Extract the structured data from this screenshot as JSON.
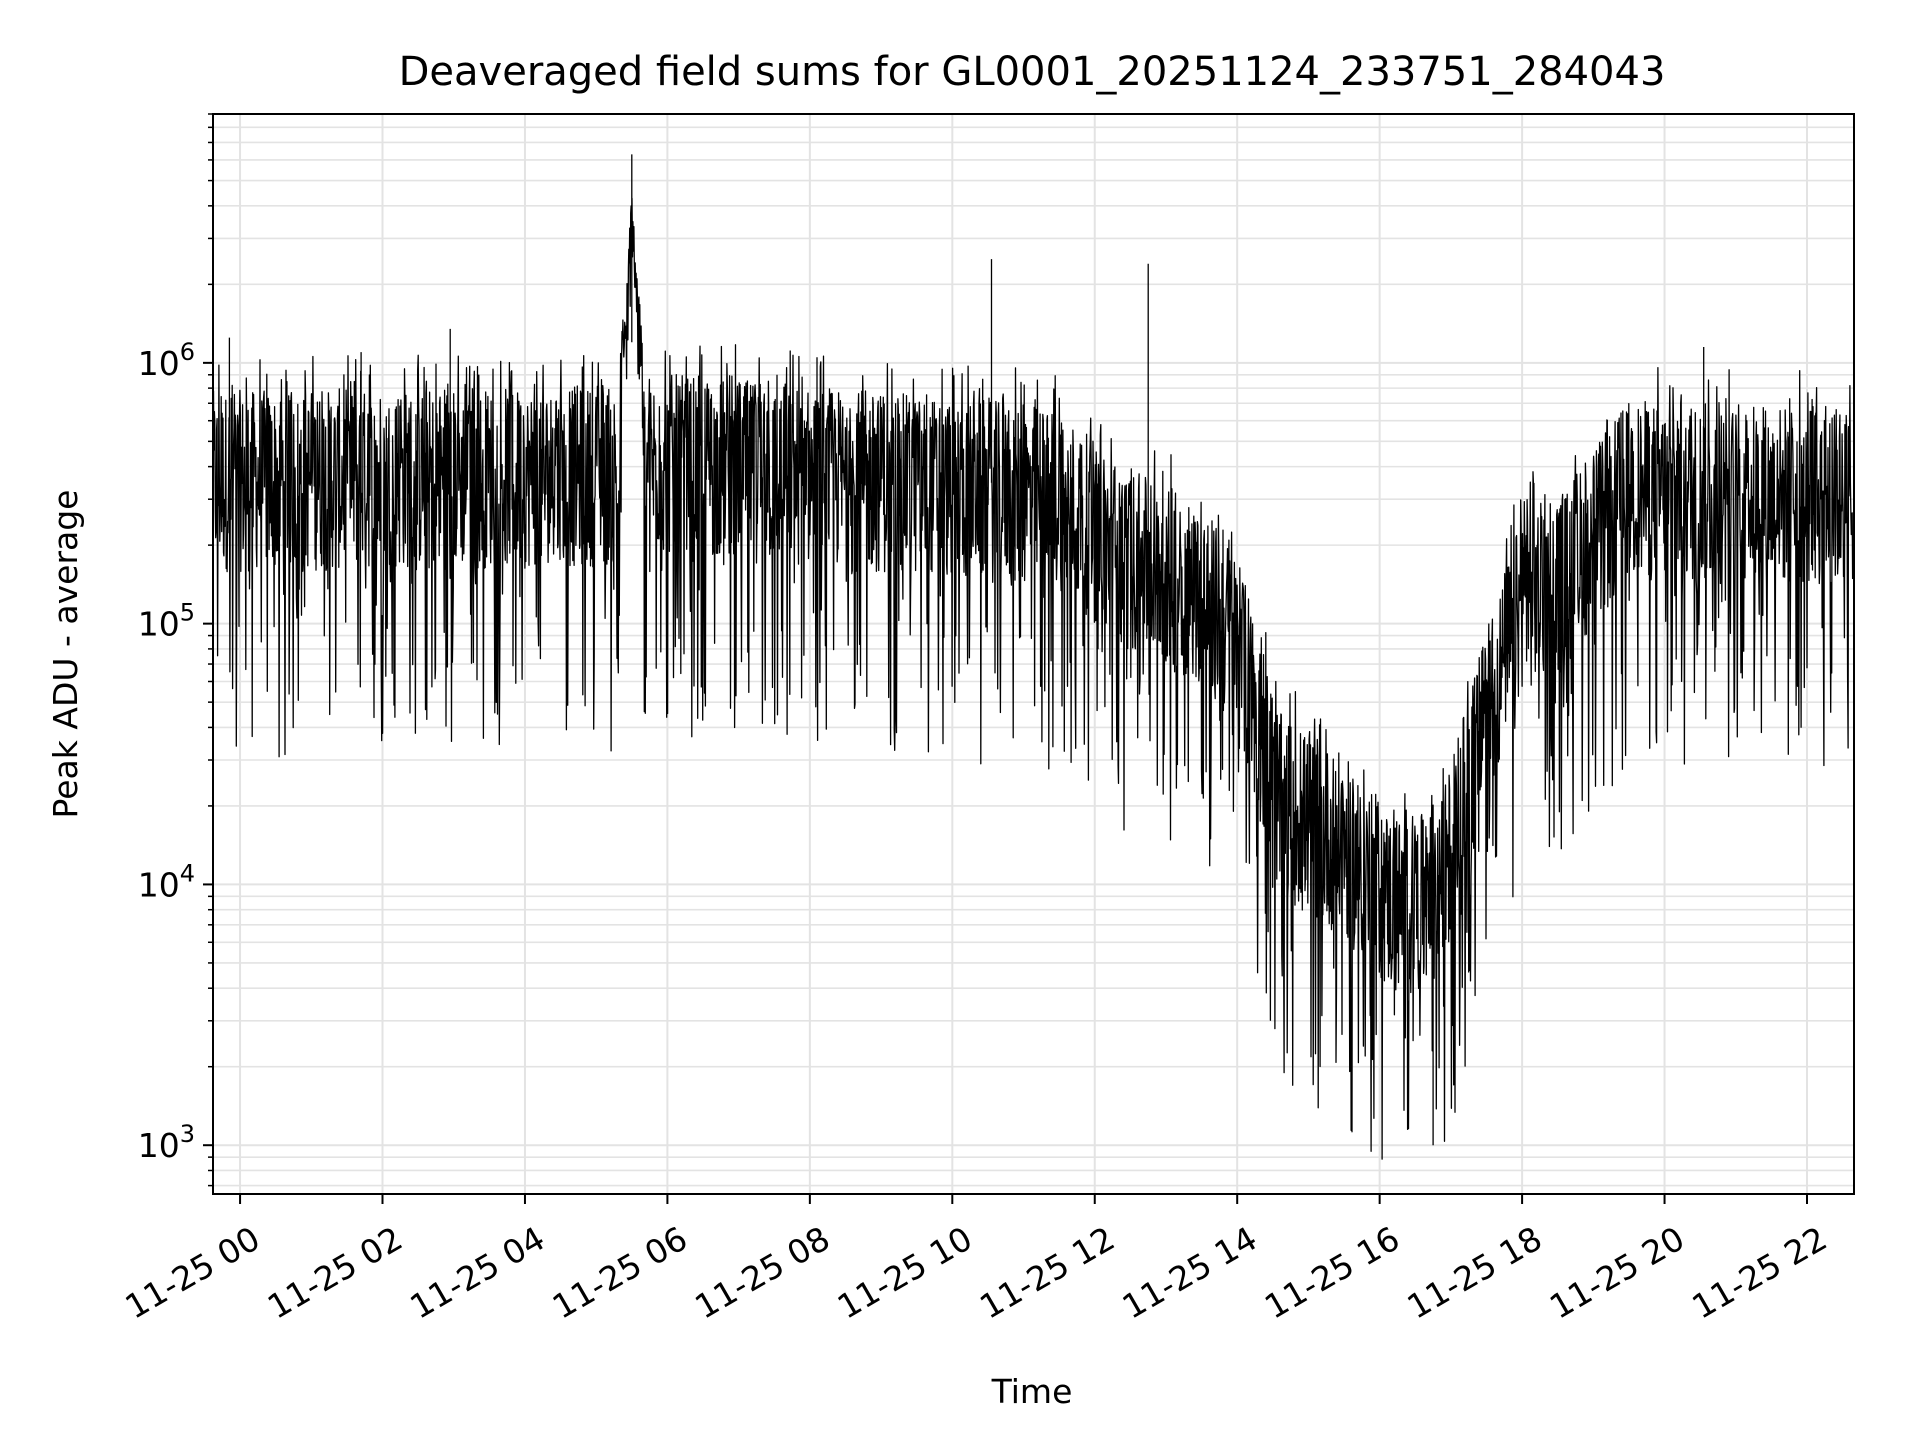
{
  "chart_data": {
    "type": "line",
    "title": "Deaveraged field sums for GL0001_20251124_233751_284043",
    "xlabel": "Time",
    "ylabel": "Peak ADU - average",
    "yscale": "log",
    "ylim": [
      650,
      9000000
    ],
    "xlim_hours": [
      -0.38,
      22.66
    ],
    "grid": true,
    "x_ticks": [
      {
        "hour": 0,
        "label": "11-25 00"
      },
      {
        "hour": 2,
        "label": "11-25 02"
      },
      {
        "hour": 4,
        "label": "11-25 04"
      },
      {
        "hour": 6,
        "label": "11-25 06"
      },
      {
        "hour": 8,
        "label": "11-25 08"
      },
      {
        "hour": 10,
        "label": "11-25 10"
      },
      {
        "hour": 12,
        "label": "11-25 12"
      },
      {
        "hour": 14,
        "label": "11-25 14"
      },
      {
        "hour": 16,
        "label": "11-25 16"
      },
      {
        "hour": 18,
        "label": "11-25 18"
      },
      {
        "hour": 20,
        "label": "11-25 20"
      },
      {
        "hour": 22,
        "label": "11-25 22"
      }
    ],
    "y_ticks": [
      {
        "value": 1000,
        "base": "10",
        "exp": "3"
      },
      {
        "value": 10000,
        "base": "10",
        "exp": "4"
      },
      {
        "value": 100000,
        "base": "10",
        "exp": "5"
      },
      {
        "value": 1000000,
        "base": "10",
        "exp": "6"
      }
    ],
    "series": [
      {
        "name": "deaveraged field sum",
        "color": "#000000",
        "baseline": [
          [
            -0.38,
            380000
          ],
          [
            5.4,
            400000
          ],
          [
            5.5,
            1200000
          ],
          [
            5.6,
            450000
          ],
          [
            11.5,
            330000
          ],
          [
            12.3,
            200000
          ],
          [
            13.5,
            140000
          ],
          [
            14.0,
            90000
          ],
          [
            14.6,
            22000
          ],
          [
            15.5,
            15000
          ],
          [
            16.2,
            9000
          ],
          [
            16.8,
            9000
          ],
          [
            17.3,
            30000
          ],
          [
            18.0,
            130000
          ],
          [
            18.6,
            160000
          ],
          [
            19.5,
            350000
          ],
          [
            22.66,
            330000
          ]
        ],
        "spikes": [
          [
            5.5,
            6300000
          ],
          [
            10.55,
            2500000
          ],
          [
            12.75,
            2400000
          ],
          [
            2.95,
            1350000
          ],
          [
            -0.15,
            1250000
          ],
          [
            20.55,
            1150000
          ],
          [
            1.7,
            1100000
          ],
          [
            8.1,
            1050000
          ],
          [
            16.75,
            1000
          ]
        ]
      }
    ]
  }
}
